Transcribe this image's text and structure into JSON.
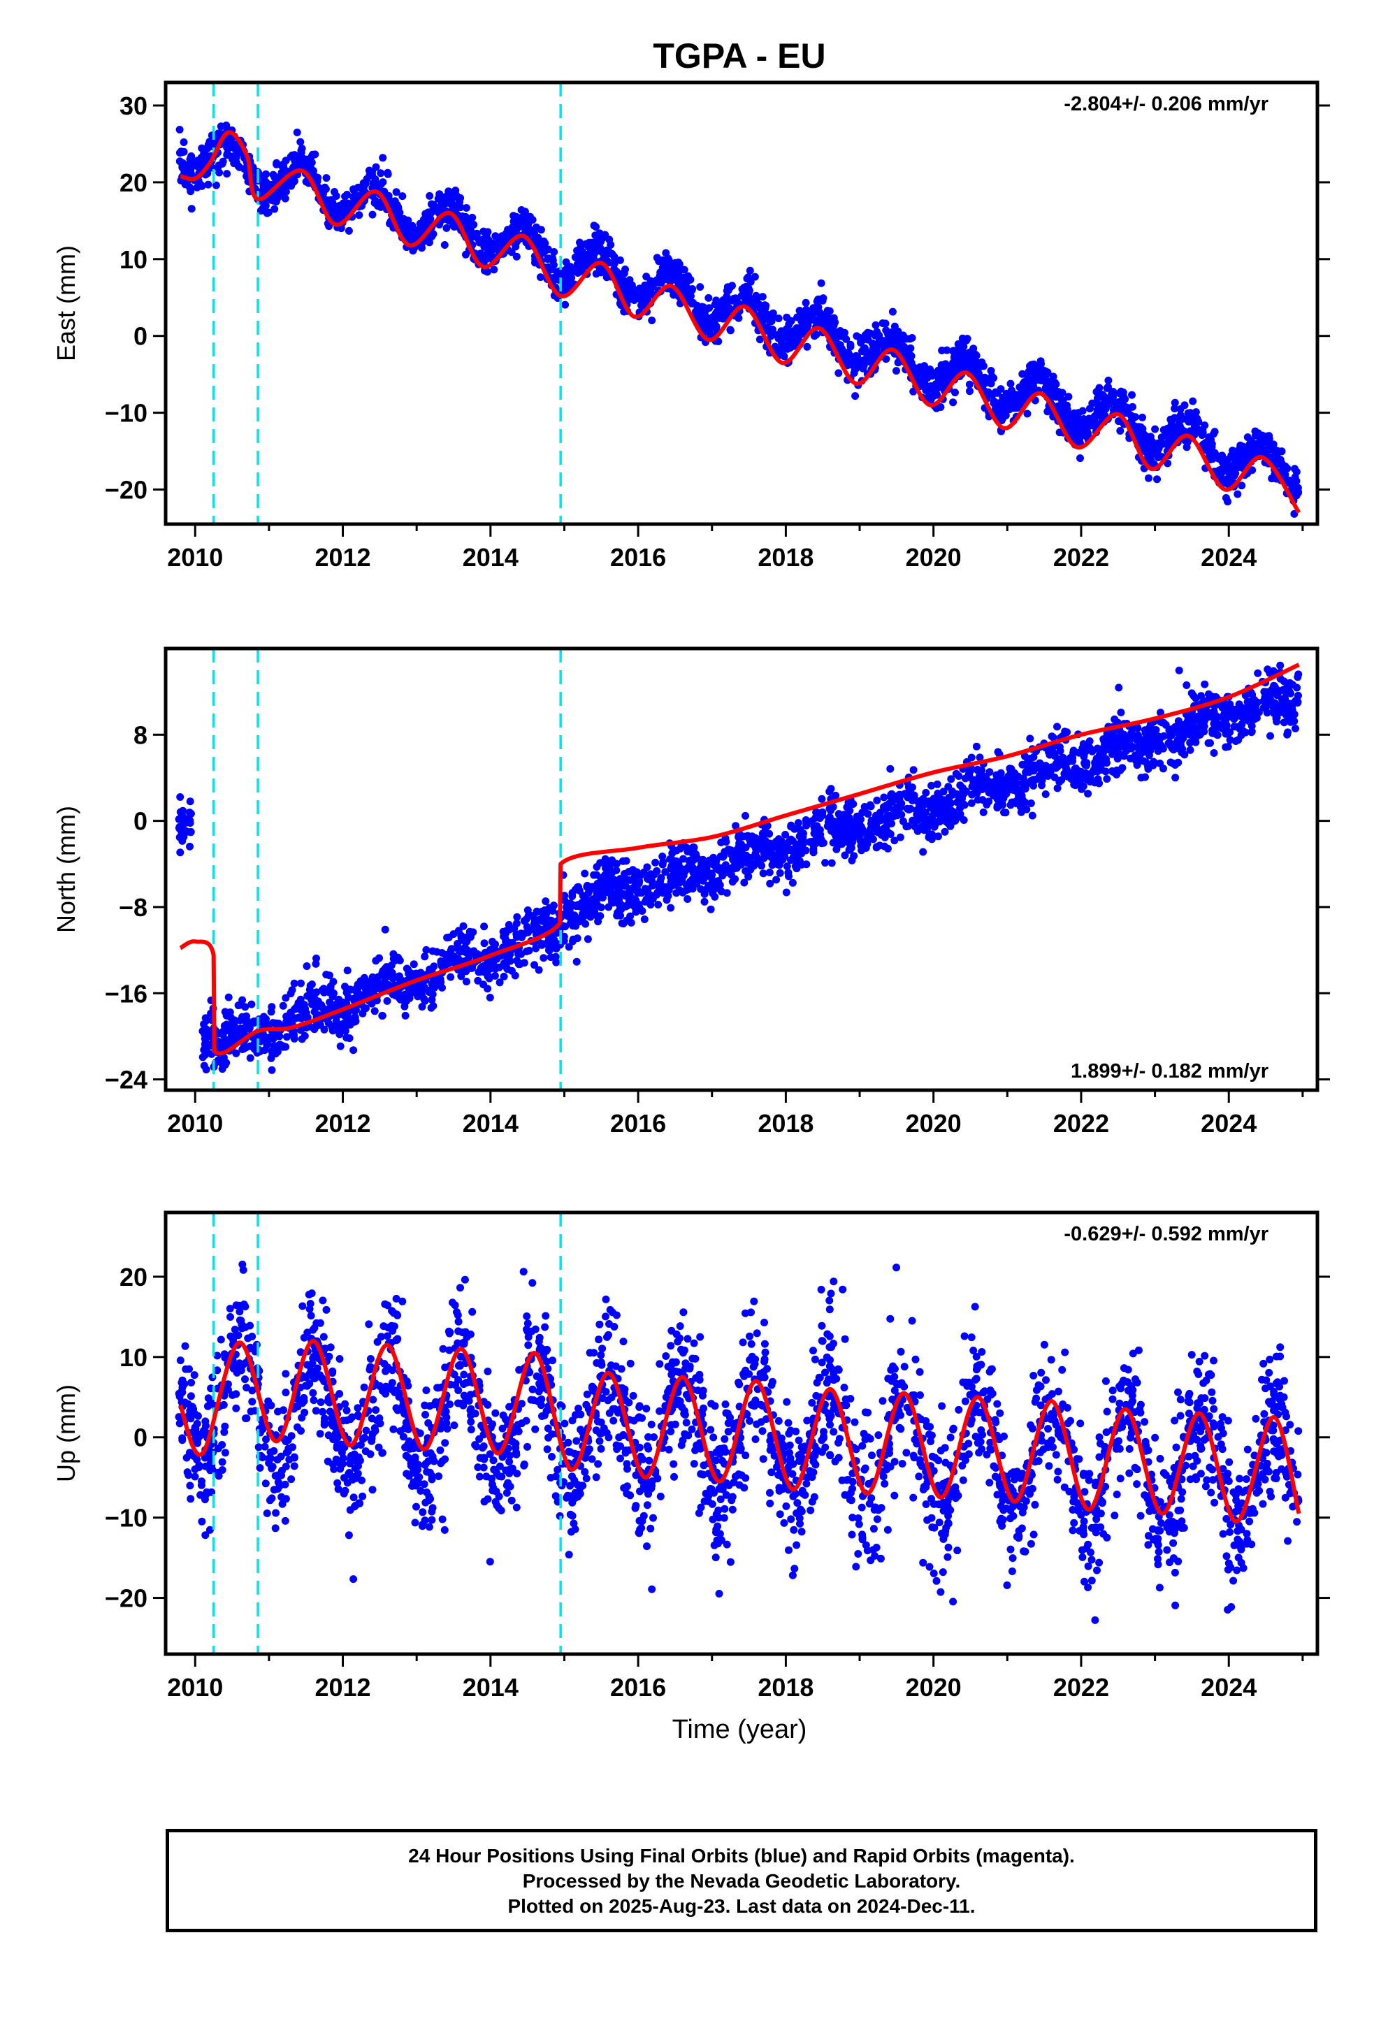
{
  "title": "TGPA - EU",
  "xlabel": "Time (year)",
  "colors": {
    "data": "#0000ff",
    "model": "#ff0000",
    "offsets": "#00e5ee",
    "frame": "#000000"
  },
  "footer": {
    "line1": "24 Hour Positions Using Final Orbits (blue) and Rapid Orbits (magenta).",
    "line2": "Processed by the Nevada Geodetic Laboratory.",
    "line3": "Plotted on 2025-Aug-23. Last data on 2024-Dec-11."
  },
  "chart_data": [
    {
      "type": "scatter",
      "component": "east",
      "ylabel": "East (mm)",
      "rate_text": "-2.804+/- 0.206 mm/yr",
      "rate_position": "top-right",
      "xlim": [
        2009.6,
        2025.2
      ],
      "ylim": [
        -24.5,
        33
      ],
      "xticks": [
        2010,
        2012,
        2014,
        2016,
        2018,
        2020,
        2022,
        2024
      ],
      "yticks": [
        -20,
        -10,
        0,
        10,
        20,
        30
      ],
      "offset_epochs": [
        2010.25,
        2010.85,
        2014.95
      ],
      "data_span": [
        2009.78,
        2024.95
      ],
      "trend_mm_per_yr": -2.804,
      "value_at_2010": 23.8,
      "annual_amplitude_mm": 2.5,
      "annual_peak_phase_yr": 0.45,
      "scatter_sigma_mm": 1.4,
      "model": [
        {
          "x": 2009.8,
          "y": 20.8
        },
        {
          "x": 2010.0,
          "y": 20.5
        },
        {
          "x": 2010.2,
          "y": 22.5
        },
        {
          "x": 2010.45,
          "y": 26.5
        },
        {
          "x": 2010.7,
          "y": 23.5
        },
        {
          "x": 2010.85,
          "y": 17.8
        },
        {
          "x": 2011.45,
          "y": 21.5
        },
        {
          "x": 2011.9,
          "y": 14.5
        },
        {
          "x": 2012.45,
          "y": 18.8
        },
        {
          "x": 2012.9,
          "y": 11.8
        },
        {
          "x": 2013.45,
          "y": 16.0
        },
        {
          "x": 2013.9,
          "y": 9.0
        },
        {
          "x": 2014.45,
          "y": 13.0
        },
        {
          "x": 2014.95,
          "y": 5.2
        },
        {
          "x": 2015.5,
          "y": 9.5
        },
        {
          "x": 2015.95,
          "y": 2.5
        },
        {
          "x": 2016.45,
          "y": 6.5
        },
        {
          "x": 2016.95,
          "y": -0.5
        },
        {
          "x": 2017.45,
          "y": 3.8
        },
        {
          "x": 2017.95,
          "y": -3.5
        },
        {
          "x": 2018.45,
          "y": 1.0
        },
        {
          "x": 2018.95,
          "y": -6.2
        },
        {
          "x": 2019.45,
          "y": -1.8
        },
        {
          "x": 2019.95,
          "y": -9.0
        },
        {
          "x": 2020.45,
          "y": -4.8
        },
        {
          "x": 2020.95,
          "y": -12.0
        },
        {
          "x": 2021.45,
          "y": -7.5
        },
        {
          "x": 2021.95,
          "y": -14.5
        },
        {
          "x": 2022.5,
          "y": -10.2
        },
        {
          "x": 2022.95,
          "y": -17.3
        },
        {
          "x": 2023.45,
          "y": -13.0
        },
        {
          "x": 2023.95,
          "y": -20.0
        },
        {
          "x": 2024.45,
          "y": -15.8
        },
        {
          "x": 2024.95,
          "y": -23.0
        }
      ]
    },
    {
      "type": "scatter",
      "component": "north",
      "ylabel": "North (mm)",
      "rate_text": "1.899+/- 0.182 mm/yr",
      "rate_position": "bottom-right",
      "xlim": [
        2009.6,
        2025.2
      ],
      "ylim": [
        -25,
        16
      ],
      "xticks": [
        2010,
        2012,
        2014,
        2016,
        2018,
        2020,
        2022,
        2024
      ],
      "yticks": [
        -24,
        -16,
        -8,
        0,
        8
      ],
      "offset_epochs": [
        2010.25,
        2010.85,
        2014.95
      ],
      "data_span": [
        2009.78,
        2024.95
      ],
      "trend_mm_per_yr": 1.899,
      "scatter_sigma_mm": 1.3,
      "segment_levels": [
        {
          "from": 2009.78,
          "to": 2009.95,
          "y0": 0.0,
          "slope": 0
        },
        {
          "from": 2010.1,
          "to": 2010.25,
          "y0": -19.5,
          "slope": 0
        },
        {
          "from": 2010.25,
          "to": 2014.95,
          "y0": -21.0,
          "slope": 2.35
        },
        {
          "from": 2014.95,
          "to": 2024.95,
          "y0": -8.5,
          "slope": 2.0
        }
      ],
      "model": [
        {
          "x": 2009.8,
          "y": -11.8
        },
        {
          "x": 2010.0,
          "y": -11.2
        },
        {
          "x": 2010.25,
          "y": -12.5
        },
        {
          "x": 2010.26,
          "y": -21.3
        },
        {
          "x": 2010.85,
          "y": -19.5
        },
        {
          "x": 2011.3,
          "y": -19.2
        },
        {
          "x": 2012.0,
          "y": -17.5
        },
        {
          "x": 2013.0,
          "y": -14.8
        },
        {
          "x": 2014.0,
          "y": -12.5
        },
        {
          "x": 2014.94,
          "y": -9.5
        },
        {
          "x": 2014.95,
          "y": -4.0
        },
        {
          "x": 2016.0,
          "y": -2.5
        },
        {
          "x": 2017.0,
          "y": -1.5
        },
        {
          "x": 2018.0,
          "y": 0.5
        },
        {
          "x": 2019.0,
          "y": 2.5
        },
        {
          "x": 2020.0,
          "y": 4.5
        },
        {
          "x": 2021.0,
          "y": 6.0
        },
        {
          "x": 2022.0,
          "y": 8.0
        },
        {
          "x": 2023.0,
          "y": 9.5
        },
        {
          "x": 2024.0,
          "y": 11.5
        },
        {
          "x": 2024.95,
          "y": 14.5
        }
      ]
    },
    {
      "type": "scatter",
      "component": "up",
      "ylabel": "Up (mm)",
      "rate_text": "-0.629+/- 0.592 mm/yr",
      "rate_position": "top-right",
      "xlim": [
        2009.6,
        2025.2
      ],
      "ylim": [
        -27,
        28
      ],
      "xticks": [
        2010,
        2012,
        2014,
        2016,
        2018,
        2020,
        2022,
        2024
      ],
      "yticks": [
        -20,
        -10,
        0,
        10,
        20
      ],
      "offset_epochs": [
        2010.25,
        2010.85,
        2014.95
      ],
      "data_span": [
        2009.78,
        2024.95
      ],
      "trend_mm_per_yr": -0.629,
      "value_at_2010": 4.5,
      "annual_amplitude_mm": 7.0,
      "annual_peak_phase_yr": 0.6,
      "scatter_sigma_mm": 4.5,
      "model": [
        {
          "x": 2009.8,
          "y": 4.0
        },
        {
          "x": 2010.1,
          "y": -2.0
        },
        {
          "x": 2010.6,
          "y": 11.8
        },
        {
          "x": 2011.1,
          "y": -0.5
        },
        {
          "x": 2011.6,
          "y": 12.0
        },
        {
          "x": 2012.1,
          "y": -1.0
        },
        {
          "x": 2012.6,
          "y": 11.5
        },
        {
          "x": 2013.1,
          "y": -1.5
        },
        {
          "x": 2013.6,
          "y": 11.0
        },
        {
          "x": 2014.1,
          "y": -2.0
        },
        {
          "x": 2014.6,
          "y": 10.5
        },
        {
          "x": 2015.1,
          "y": -4.0
        },
        {
          "x": 2015.6,
          "y": 8.0
        },
        {
          "x": 2016.1,
          "y": -5.0
        },
        {
          "x": 2016.6,
          "y": 7.5
        },
        {
          "x": 2017.1,
          "y": -5.5
        },
        {
          "x": 2017.6,
          "y": 7.0
        },
        {
          "x": 2018.1,
          "y": -6.5
        },
        {
          "x": 2018.6,
          "y": 6.0
        },
        {
          "x": 2019.1,
          "y": -7.0
        },
        {
          "x": 2019.6,
          "y": 5.5
        },
        {
          "x": 2020.1,
          "y": -7.5
        },
        {
          "x": 2020.6,
          "y": 5.0
        },
        {
          "x": 2021.1,
          "y": -8.0
        },
        {
          "x": 2021.6,
          "y": 4.5
        },
        {
          "x": 2022.1,
          "y": -9.0
        },
        {
          "x": 2022.6,
          "y": 3.5
        },
        {
          "x": 2023.1,
          "y": -9.5
        },
        {
          "x": 2023.6,
          "y": 3.0
        },
        {
          "x": 2024.1,
          "y": -10.5
        },
        {
          "x": 2024.6,
          "y": 2.5
        },
        {
          "x": 2024.95,
          "y": -9.5
        }
      ]
    }
  ]
}
